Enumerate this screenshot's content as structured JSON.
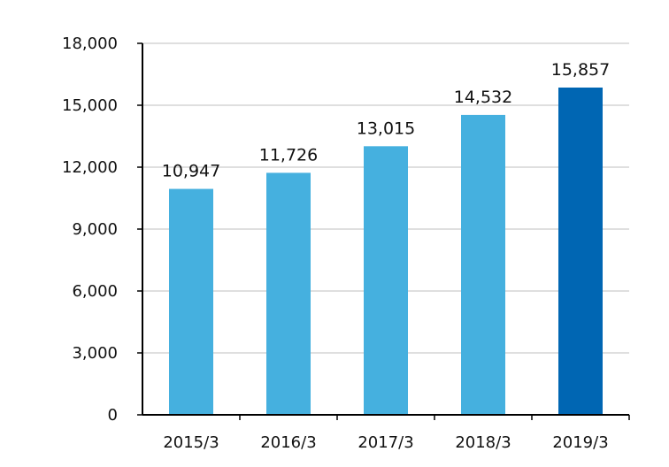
{
  "chart_data": {
    "type": "bar",
    "categories": [
      "2015/3",
      "2016/3",
      "2017/3",
      "2018/3",
      "2019/3"
    ],
    "values": [
      10947,
      11726,
      13015,
      14532,
      15857
    ],
    "value_labels": [
      "10,947",
      "11,726",
      "13,015",
      "14,532",
      "15,857"
    ],
    "ylim": [
      0,
      18000
    ],
    "yticks": [
      0,
      3000,
      6000,
      9000,
      12000,
      15000,
      18000
    ],
    "ytick_labels": [
      "0",
      "3,000",
      "6,000",
      "9,000",
      "12,000",
      "15,000",
      "18,000"
    ],
    "grid": true,
    "colors": {
      "bar": "#45b0df",
      "highlight_bar": "#0066b3",
      "grid": "#bfbfbf",
      "axis": "#000000"
    },
    "highlight_index": 4
  }
}
